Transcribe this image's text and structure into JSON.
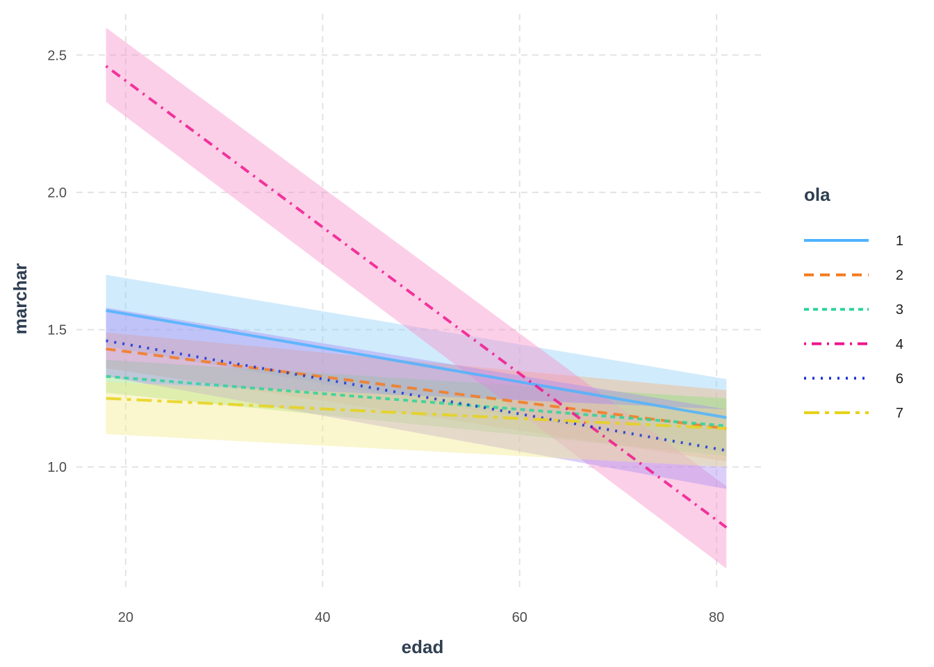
{
  "chart_data": {
    "type": "line",
    "xlabel": "edad",
    "ylabel": "marchar",
    "xlim": [
      15,
      85
    ],
    "ylim": [
      0.55,
      2.65
    ],
    "x_ticks": [
      20,
      40,
      60,
      80
    ],
    "y_ticks": [
      1.0,
      1.5,
      2.0,
      2.5
    ],
    "x_tick_labels": [
      "20",
      "40",
      "60",
      "80"
    ],
    "y_tick_labels": [
      "1.0",
      "1.5",
      "2.0",
      "2.5"
    ],
    "grid": true,
    "legend": {
      "title": "ola",
      "position": "right"
    },
    "series": [
      {
        "name": "1",
        "color": "#4db3ff",
        "dash": "solid",
        "band_color": "#8fd0f7",
        "x": [
          18,
          81
        ],
        "y": [
          1.57,
          1.18
        ],
        "lower": [
          1.44,
          1.05
        ],
        "upper": [
          1.7,
          1.32
        ]
      },
      {
        "name": "2",
        "color": "#f47a1f",
        "dash": "dashed",
        "band_color": "#f2b27a",
        "x": [
          18,
          81
        ],
        "y": [
          1.43,
          1.14
        ],
        "lower": [
          1.36,
          1.02
        ],
        "upper": [
          1.49,
          1.28
        ]
      },
      {
        "name": "3",
        "color": "#2dd39a",
        "dash": "short-dashed",
        "band_color": "#8fe07a",
        "x": [
          18,
          81
        ],
        "y": [
          1.33,
          1.15
        ],
        "lower": [
          1.27,
          1.04
        ],
        "upper": [
          1.39,
          1.25
        ]
      },
      {
        "name": "4",
        "color": "#f0168d",
        "dash": "dot-dash",
        "band_color": "#f78cc8",
        "x": [
          18,
          81
        ],
        "y": [
          2.46,
          0.78
        ],
        "lower": [
          2.33,
          0.63
        ],
        "upper": [
          2.6,
          0.93
        ]
      },
      {
        "name": "6",
        "color": "#1a33d6",
        "dash": "dotted",
        "band_color": "#a98cf0",
        "x": [
          18,
          81
        ],
        "y": [
          1.46,
          1.06
        ],
        "lower": [
          1.33,
          0.92
        ],
        "upper": [
          1.58,
          1.21
        ]
      },
      {
        "name": "7",
        "color": "#e6d21a",
        "dash": "long-dash",
        "band_color": "#f3e98a",
        "x": [
          18,
          81
        ],
        "y": [
          1.25,
          1.14
        ],
        "lower": [
          1.12,
          1.0
        ],
        "upper": [
          1.31,
          1.21
        ]
      }
    ]
  }
}
